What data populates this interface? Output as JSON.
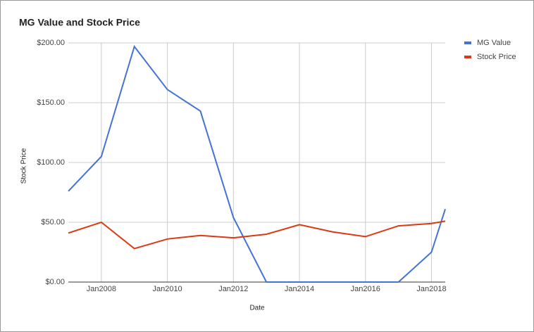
{
  "chart_data": {
    "type": "line",
    "title": "MG Value and Stock Price",
    "x_label": "Date",
    "y_label": "Stock Price",
    "x": [
      "2007-01",
      "2008-01",
      "2009-01",
      "2010-01",
      "2011-01",
      "2012-01",
      "2013-01",
      "2014-01",
      "2015-01",
      "2016-01",
      "2017-01",
      "2018-01",
      "2018-06"
    ],
    "series": [
      {
        "name": "MG Value",
        "color": "#4473d3",
        "values": [
          76,
          105,
          197,
          161,
          143,
          54,
          0,
          0,
          0,
          0,
          0,
          25,
          61
        ]
      },
      {
        "name": "Stock Price",
        "color": "#dc3912",
        "values": [
          41,
          50,
          28,
          36,
          39,
          37,
          40,
          48,
          42,
          38,
          47,
          49,
          51
        ]
      }
    ],
    "xlim": [
      "2007-01",
      "2018-06"
    ],
    "xticks": [
      {
        "value": "2008-01",
        "label": "Jan2008"
      },
      {
        "value": "2010-01",
        "label": "Jan2010"
      },
      {
        "value": "2012-01",
        "label": "Jan2012"
      },
      {
        "value": "2014-01",
        "label": "Jan2014"
      },
      {
        "value": "2016-01",
        "label": "Jan2016"
      },
      {
        "value": "2018-01",
        "label": "Jan2018"
      }
    ],
    "ylim": [
      0,
      200
    ],
    "yticks": [
      {
        "value": 0,
        "label": "$0.00"
      },
      {
        "value": 50,
        "label": "$50.00"
      },
      {
        "value": 100,
        "label": "$100.00"
      },
      {
        "value": 150,
        "label": "$150.00"
      },
      {
        "value": 200,
        "label": "$200.00"
      }
    ],
    "grid": true,
    "legend": "right"
  }
}
